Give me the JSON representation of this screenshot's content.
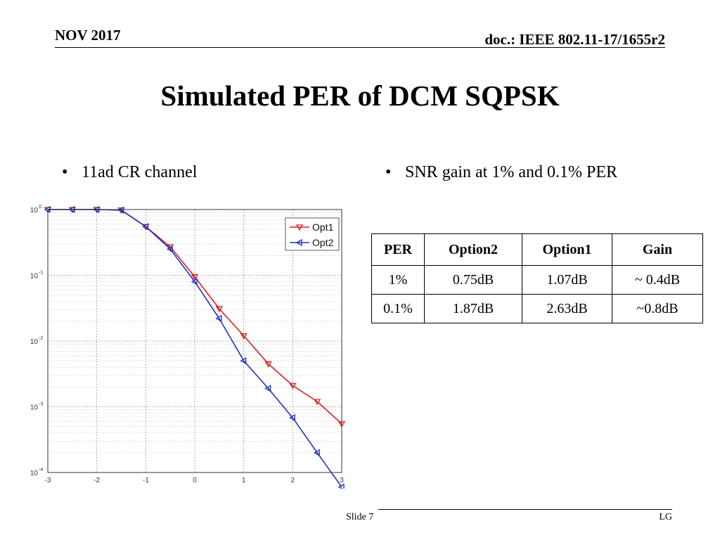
{
  "header": {
    "date": "NOV 2017",
    "doc": "doc.: IEEE 802.11-17/1655r2"
  },
  "title": "Simulated PER of DCM SQPSK",
  "bullets": {
    "left": "11ad CR channel",
    "right": "SNR gain at 1% and 0.1% PER"
  },
  "table": {
    "headers": [
      "PER",
      "Option2",
      "Option1",
      "Gain"
    ],
    "rows": [
      [
        "1%",
        "0.75dB",
        "1.07dB",
        "~ 0.4dB"
      ],
      [
        "0.1%",
        "1.87dB",
        "2.63dB",
        "~0.8dB"
      ]
    ]
  },
  "footer": {
    "slide": "Slide 7",
    "org": "LG"
  },
  "chart_data": {
    "type": "line",
    "xlim": [
      -3,
      3
    ],
    "ylim": [
      0.0001,
      1
    ],
    "yscale": "log",
    "grid": true,
    "legend_position": "top-right",
    "x_ticks": [
      "-3",
      "-2",
      "-1",
      "0",
      "1",
      "2",
      "3"
    ],
    "y_ticks": [
      {
        "base": "10",
        "exp": "0",
        "value": 1
      },
      {
        "base": "10",
        "exp": "-1",
        "value": 0.1
      },
      {
        "base": "10",
        "exp": "-2",
        "value": 0.01
      },
      {
        "base": "10",
        "exp": "-3",
        "value": 0.001
      },
      {
        "base": "10",
        "exp": "-4",
        "value": 0.0001
      }
    ],
    "series": [
      {
        "name": "Opt1",
        "color": "#d42020",
        "marker": "triangle-down",
        "x": [
          -3,
          -2.5,
          -2,
          -1.5,
          -1,
          -0.5,
          0,
          0.5,
          1,
          1.5,
          2,
          2.5,
          3
        ],
        "y": [
          1,
          1,
          1,
          0.98,
          0.55,
          0.27,
          0.095,
          0.031,
          0.012,
          0.0045,
          0.0021,
          0.0012,
          0.00055
        ]
      },
      {
        "name": "Opt2",
        "color": "#2030c0",
        "marker": "triangle-left",
        "x": [
          -3,
          -2.5,
          -2,
          -1.5,
          -1,
          -0.5,
          0,
          0.5,
          1,
          1.5,
          2,
          2.5,
          3
        ],
        "y": [
          1,
          1,
          1,
          0.98,
          0.55,
          0.25,
          0.08,
          0.022,
          0.005,
          0.0019,
          0.00068,
          0.0002,
          6e-05
        ]
      }
    ]
  }
}
